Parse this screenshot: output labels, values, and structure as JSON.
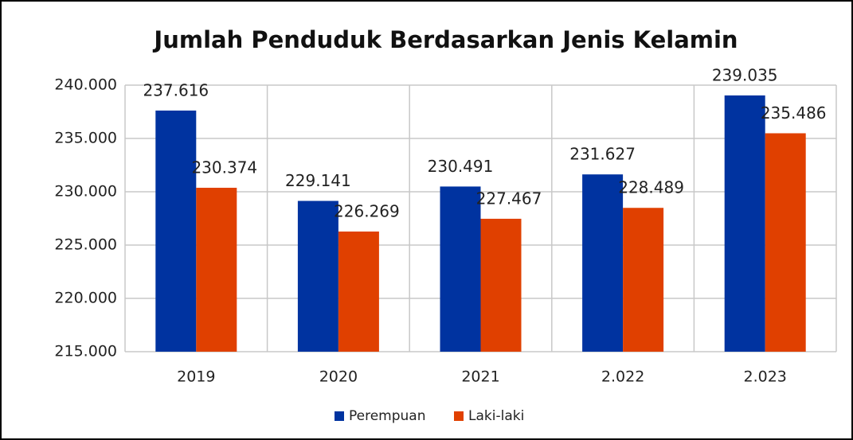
{
  "chart_data": {
    "type": "bar",
    "title": "Jumlah Penduduk Berdasarkan Jenis Kelamin",
    "categories": [
      "2019",
      "2020",
      "2021",
      "2.022",
      "2.023"
    ],
    "series": [
      {
        "name": "Perempuan",
        "color": "#0033a0",
        "values": [
          237616,
          229141,
          230491,
          231627,
          239035
        ],
        "value_labels": [
          "237.616",
          "229.141",
          "230.491",
          "231.627",
          "239.035"
        ]
      },
      {
        "name": "Laki-laki",
        "color": "#e04000",
        "values": [
          230374,
          226269,
          227467,
          228489,
          235486
        ],
        "value_labels": [
          "230.374",
          "226.269",
          "227.467",
          "228.489",
          "235.486"
        ]
      }
    ],
    "ylim": [
      215000,
      240000
    ],
    "yticks": [
      {
        "value": 215000,
        "label": "215.000"
      },
      {
        "value": 220000,
        "label": "220.000"
      },
      {
        "value": 225000,
        "label": "225.000"
      },
      {
        "value": 230000,
        "label": "230.000"
      },
      {
        "value": 235000,
        "label": "235.000"
      },
      {
        "value": 240000,
        "label": "240.000"
      }
    ],
    "grid": true,
    "legend": "bottom"
  }
}
